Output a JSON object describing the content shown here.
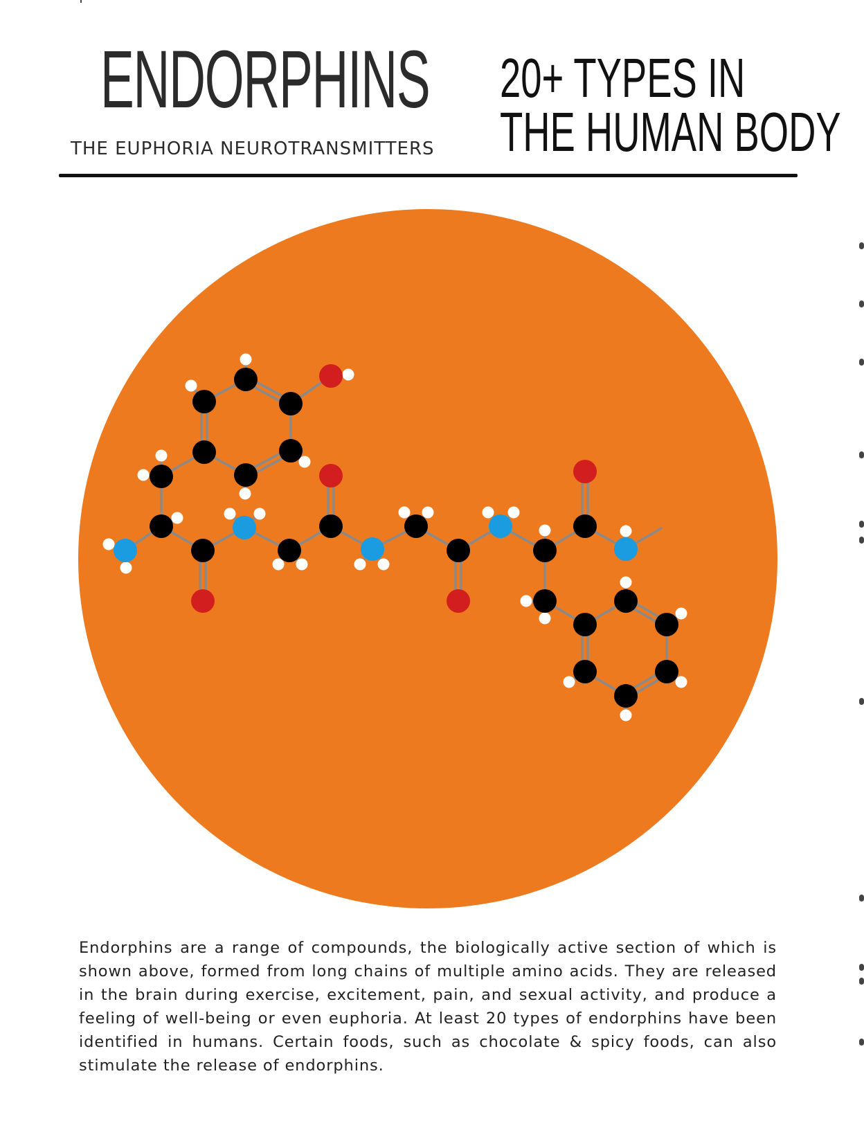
{
  "header": {
    "title": "ENDORPHINS",
    "subtitle": "THE EUPHORIA NEUROTRANSMITTERS",
    "types_line1": "20+ TYPES IN",
    "types_line2": "THE HUMAN BODY"
  },
  "colors": {
    "circle": "#EE7A1F",
    "carbon": "#000000",
    "hydrogen": "#FFFFFF",
    "oxygen": "#D21E1E",
    "nitrogen": "#1B9BE0",
    "bond": "#8A8A8A",
    "text": "#222222"
  },
  "molecule": {
    "atom_types": [
      "carbon",
      "hydrogen",
      "oxygen",
      "nitrogen"
    ],
    "description_visible": false
  },
  "body": {
    "paragraph": "Endorphins are a range of compounds, the biologically active section of which is shown above, formed from long chains of multiple amino acids. They are released in the brain during exercise, excitement, pain, and sexual activity, and produce a feeling of well-being or even euphoria. At least 20 types of endorphins have been identified in humans. Certain foods, such as chocolate & spicy foods, can also stimulate the release of endorphins."
  }
}
